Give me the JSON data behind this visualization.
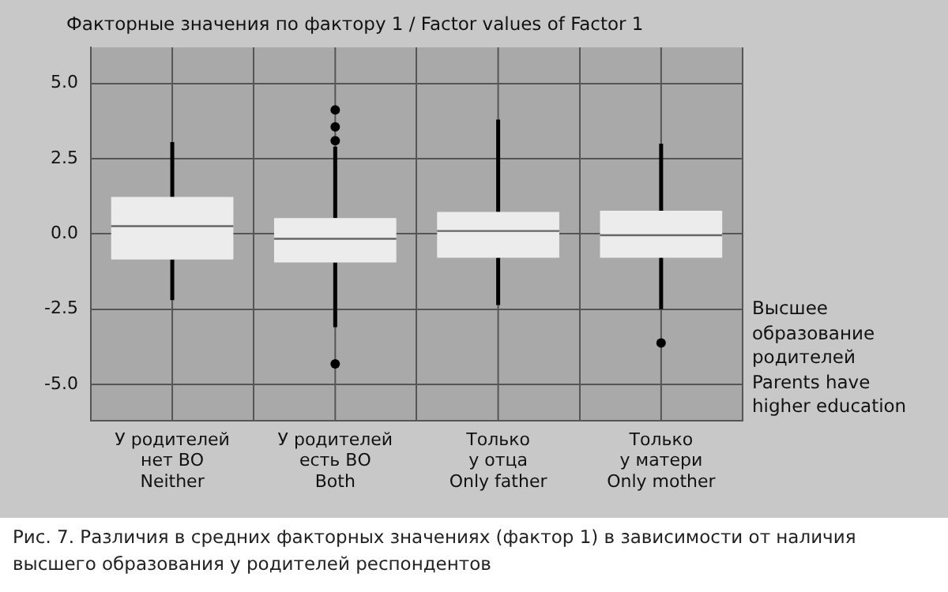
{
  "chart_data": {
    "type": "box",
    "ylabel": "Факторные значения по фактору 1 / Factor values of Factor 1",
    "xlabel": "Высшее\nобразование\nродителей\nParents have\nhigher education",
    "categories": [
      "У родителей\nнет ВО\nNeither",
      "У родителей\nесть ВО\nBoth",
      "Только\nу отца\nOnly father",
      "Только\nу матери\nOnly mother"
    ],
    "boxes": [
      {
        "low": -2.2,
        "q1": -0.85,
        "median": 0.26,
        "q3": 1.23,
        "high": 3.05
      },
      {
        "low": -3.1,
        "q1": -0.95,
        "median": -0.16,
        "q3": 0.53,
        "high": 2.9,
        "outliers": [
          4.12,
          3.56,
          3.1,
          -4.32
        ]
      },
      {
        "low": -2.36,
        "q1": -0.79,
        "median": 0.1,
        "q3": 0.73,
        "high": 3.8
      },
      {
        "low": -2.5,
        "q1": -0.79,
        "median": -0.04,
        "q3": 0.77,
        "high": 3.0,
        "outliers": [
          -3.62
        ]
      }
    ],
    "color": "#ececec",
    "ylim": [
      -6.2,
      6.2
    ],
    "yticks": [
      {
        "value": -5,
        "label": "-5.0"
      },
      {
        "value": -2.5,
        "label": "-2.5"
      },
      {
        "value": 0,
        "label": "0.0"
      },
      {
        "value": 2.5,
        "label": "2.5"
      },
      {
        "value": 5,
        "label": "5.0"
      }
    ],
    "grid": true,
    "legend": false,
    "annotations": [
      "Рис. 7. Различия в средних факторных значениях (фактор 1) в зависимости от наличия высшего образования у родителей респондентов"
    ]
  }
}
